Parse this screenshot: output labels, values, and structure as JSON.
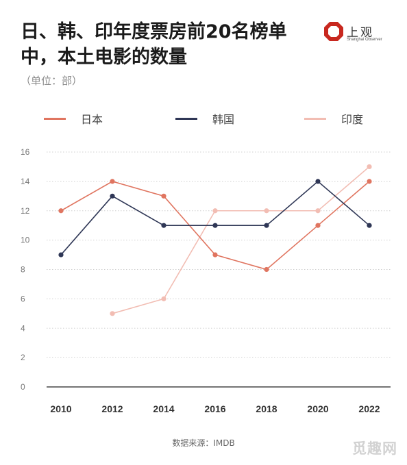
{
  "title": "日、韩、印年度票房前20名榜单中，本土电影的数量",
  "unit": "（单位：部）",
  "logo": {
    "name": "上观",
    "sub": "Shanghai Observer"
  },
  "source": "数据来源：IMDB",
  "watermark": "觅趣网",
  "colors": {
    "japan": "#e07560",
    "korea": "#2f3756",
    "india": "#f2bdb3",
    "grid": "#cfcfcf",
    "axis": "#222222"
  },
  "chart_data": {
    "type": "line",
    "x": [
      "2010",
      "2012",
      "2014",
      "2016",
      "2018",
      "2020",
      "2022"
    ],
    "ylim": [
      0,
      16
    ],
    "yticks": [
      0,
      2,
      4,
      6,
      8,
      10,
      12,
      14,
      16
    ],
    "grid": true,
    "legend_position": "top",
    "series": [
      {
        "name": "日本",
        "color": "#e07560",
        "values": [
          12,
          14,
          13,
          9,
          8,
          11,
          14
        ]
      },
      {
        "name": "韩国",
        "color": "#2f3756",
        "values": [
          9,
          13,
          11,
          11,
          11,
          14,
          11
        ]
      },
      {
        "name": "印度",
        "color": "#f2bdb3",
        "values": [
          null,
          5,
          6,
          12,
          12,
          12,
          15
        ]
      }
    ]
  }
}
